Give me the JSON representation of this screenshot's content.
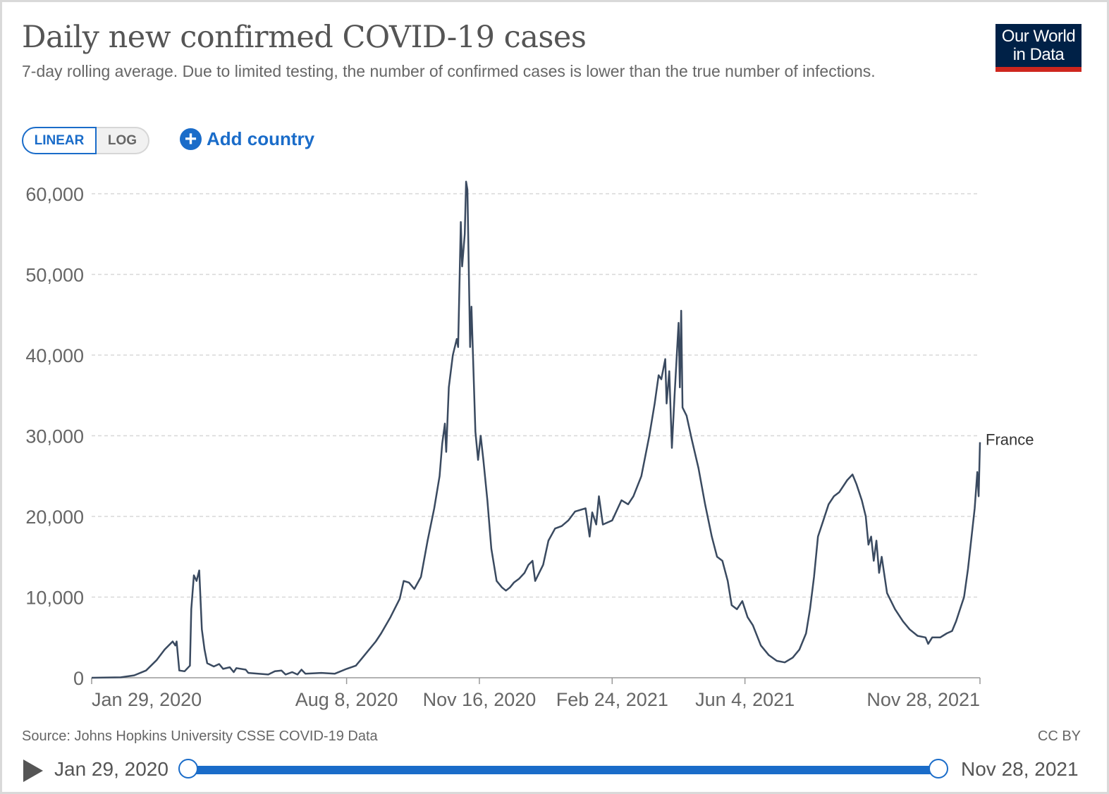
{
  "header": {
    "title": "Daily new confirmed COVID-19 cases",
    "subtitle": "7-day rolling average. Due to limited testing, the number of confirmed cases is lower than the true number of infections."
  },
  "logo": {
    "line1": "Our World",
    "line2": "in Data"
  },
  "controls": {
    "linear_label": "LINEAR",
    "log_label": "LOG",
    "add_country_label": "Add country",
    "active_scale": "linear"
  },
  "footer": {
    "source": "Source: Johns Hopkins University CSSE COVID-19 Data",
    "license": "CC BY"
  },
  "timeline": {
    "start_label": "Jan 29, 2020",
    "end_label": "Nov 28, 2021",
    "start_fraction": 0,
    "end_fraction": 1
  },
  "colors": {
    "line": "#3a4a60",
    "grid": "#d8d8d8",
    "accent": "#1a6cc9",
    "logo_bg": "#002147",
    "logo_bar": "#ce261e"
  },
  "chart_data": {
    "type": "line",
    "title": "Daily new confirmed COVID-19 cases",
    "xlabel": "",
    "ylabel": "",
    "ylim": [
      0,
      60000
    ],
    "xlim": [
      "2020-01-29",
      "2021-11-28"
    ],
    "y_ticks": [
      0,
      10000,
      20000,
      30000,
      40000,
      50000,
      60000
    ],
    "y_tick_labels": [
      "0",
      "10,000",
      "20,000",
      "30,000",
      "40,000",
      "50,000",
      "60,000"
    ],
    "x_ticks": [
      "2020-01-29",
      "2020-08-08",
      "2020-11-16",
      "2021-02-24",
      "2021-06-04",
      "2021-11-28"
    ],
    "x_tick_labels": [
      "Jan 29, 2020",
      "Aug 8, 2020",
      "Nov 16, 2020",
      "Feb 24, 2021",
      "Jun 4, 2021",
      "Nov 28, 2021"
    ],
    "grid": "horizontal dashed",
    "legend": "inline label at line end",
    "series": [
      {
        "name": "France",
        "points": [
          [
            "2020-01-29",
            0
          ],
          [
            "2020-02-20",
            50
          ],
          [
            "2020-03-01",
            300
          ],
          [
            "2020-03-10",
            900
          ],
          [
            "2020-03-18",
            2200
          ],
          [
            "2020-03-24",
            3500
          ],
          [
            "2020-03-30",
            4500
          ],
          [
            "2020-04-01",
            4000
          ],
          [
            "2020-04-02",
            4500
          ],
          [
            "2020-04-04",
            900
          ],
          [
            "2020-04-08",
            800
          ],
          [
            "2020-04-12",
            1500
          ],
          [
            "2020-04-13",
            8500
          ],
          [
            "2020-04-15",
            12700
          ],
          [
            "2020-04-17",
            12000
          ],
          [
            "2020-04-19",
            13300
          ],
          [
            "2020-04-21",
            6000
          ],
          [
            "2020-04-23",
            3500
          ],
          [
            "2020-04-25",
            1800
          ],
          [
            "2020-04-30",
            1400
          ],
          [
            "2020-05-04",
            1700
          ],
          [
            "2020-05-07",
            1100
          ],
          [
            "2020-05-12",
            1300
          ],
          [
            "2020-05-15",
            700
          ],
          [
            "2020-05-17",
            1200
          ],
          [
            "2020-05-24",
            1000
          ],
          [
            "2020-05-26",
            600
          ],
          [
            "2020-06-10",
            400
          ],
          [
            "2020-06-15",
            800
          ],
          [
            "2020-06-20",
            900
          ],
          [
            "2020-06-23",
            400
          ],
          [
            "2020-06-28",
            700
          ],
          [
            "2020-07-02",
            400
          ],
          [
            "2020-07-05",
            1000
          ],
          [
            "2020-07-08",
            500
          ],
          [
            "2020-07-20",
            600
          ],
          [
            "2020-07-30",
            500
          ],
          [
            "2020-08-08",
            1100
          ],
          [
            "2020-08-15",
            1500
          ],
          [
            "2020-08-20",
            2500
          ],
          [
            "2020-08-25",
            3500
          ],
          [
            "2020-08-30",
            4500
          ],
          [
            "2020-09-03",
            5500
          ],
          [
            "2020-09-10",
            7500
          ],
          [
            "2020-09-17",
            9800
          ],
          [
            "2020-09-20",
            12000
          ],
          [
            "2020-09-24",
            11800
          ],
          [
            "2020-09-28",
            11000
          ],
          [
            "2020-10-03",
            12500
          ],
          [
            "2020-10-08",
            17000
          ],
          [
            "2020-10-13",
            21000
          ],
          [
            "2020-10-17",
            25000
          ],
          [
            "2020-10-19",
            29000
          ],
          [
            "2020-10-21",
            31500
          ],
          [
            "2020-10-22",
            28000
          ],
          [
            "2020-10-24",
            36000
          ],
          [
            "2020-10-27",
            40000
          ],
          [
            "2020-10-30",
            42000
          ],
          [
            "2020-10-31",
            41000
          ],
          [
            "2020-11-02",
            56500
          ],
          [
            "2020-11-03",
            51000
          ],
          [
            "2020-11-05",
            55000
          ],
          [
            "2020-11-06",
            61500
          ],
          [
            "2020-11-07",
            60500
          ],
          [
            "2020-11-09",
            41000
          ],
          [
            "2020-11-10",
            46000
          ],
          [
            "2020-11-13",
            30500
          ],
          [
            "2020-11-15",
            27000
          ],
          [
            "2020-11-17",
            30000
          ],
          [
            "2020-11-19",
            27000
          ],
          [
            "2020-11-22",
            22000
          ],
          [
            "2020-11-25",
            16000
          ],
          [
            "2020-11-29",
            12000
          ],
          [
            "2020-12-03",
            11200
          ],
          [
            "2020-12-06",
            10800
          ],
          [
            "2020-12-09",
            11200
          ],
          [
            "2020-12-12",
            11800
          ],
          [
            "2020-12-16",
            12300
          ],
          [
            "2020-12-20",
            13000
          ],
          [
            "2020-12-23",
            14000
          ],
          [
            "2020-12-26",
            14500
          ],
          [
            "2020-12-28",
            12000
          ],
          [
            "2021-01-03",
            14000
          ],
          [
            "2021-01-07",
            17000
          ],
          [
            "2021-01-12",
            18500
          ],
          [
            "2021-01-17",
            18800
          ],
          [
            "2021-01-22",
            19500
          ],
          [
            "2021-01-27",
            20600
          ],
          [
            "2021-02-04",
            21000
          ],
          [
            "2021-02-07",
            17500
          ],
          [
            "2021-02-09",
            20500
          ],
          [
            "2021-02-12",
            19000
          ],
          [
            "2021-02-14",
            22500
          ],
          [
            "2021-02-17",
            19000
          ],
          [
            "2021-02-24",
            19500
          ],
          [
            "2021-03-03",
            22000
          ],
          [
            "2021-03-08",
            21500
          ],
          [
            "2021-03-12",
            22500
          ],
          [
            "2021-03-18",
            25000
          ],
          [
            "2021-03-24",
            30000
          ],
          [
            "2021-03-28",
            34000
          ],
          [
            "2021-03-31",
            37500
          ],
          [
            "2021-04-02",
            37000
          ],
          [
            "2021-04-05",
            39500
          ],
          [
            "2021-04-06",
            34000
          ],
          [
            "2021-04-08",
            38000
          ],
          [
            "2021-04-10",
            28500
          ],
          [
            "2021-04-12",
            35000
          ],
          [
            "2021-04-15",
            44000
          ],
          [
            "2021-04-16",
            36000
          ],
          [
            "2021-04-17",
            45500
          ],
          [
            "2021-04-18",
            33500
          ],
          [
            "2021-04-21",
            32500
          ],
          [
            "2021-04-25",
            29500
          ],
          [
            "2021-04-30",
            26000
          ],
          [
            "2021-05-05",
            21500
          ],
          [
            "2021-05-10",
            17500
          ],
          [
            "2021-05-14",
            15000
          ],
          [
            "2021-05-18",
            14500
          ],
          [
            "2021-05-22",
            12000
          ],
          [
            "2021-05-25",
            9000
          ],
          [
            "2021-05-29",
            8500
          ],
          [
            "2021-06-02",
            9500
          ],
          [
            "2021-06-06",
            7500
          ],
          [
            "2021-06-10",
            6500
          ],
          [
            "2021-06-16",
            4000
          ],
          [
            "2021-06-22",
            2800
          ],
          [
            "2021-06-28",
            2100
          ],
          [
            "2021-07-04",
            1900
          ],
          [
            "2021-07-10",
            2500
          ],
          [
            "2021-07-15",
            3500
          ],
          [
            "2021-07-20",
            5500
          ],
          [
            "2021-07-23",
            8500
          ],
          [
            "2021-07-26",
            12500
          ],
          [
            "2021-07-29",
            17500
          ],
          [
            "2021-08-02",
            19500
          ],
          [
            "2021-08-06",
            21500
          ],
          [
            "2021-08-10",
            22500
          ],
          [
            "2021-08-14",
            23000
          ],
          [
            "2021-08-20",
            24500
          ],
          [
            "2021-08-24",
            25200
          ],
          [
            "2021-08-27",
            24000
          ],
          [
            "2021-08-31",
            22000
          ],
          [
            "2021-09-03",
            20000
          ],
          [
            "2021-09-05",
            16500
          ],
          [
            "2021-09-07",
            17500
          ],
          [
            "2021-09-09",
            14500
          ],
          [
            "2021-09-11",
            17000
          ],
          [
            "2021-09-13",
            13000
          ],
          [
            "2021-09-15",
            15000
          ],
          [
            "2021-09-19",
            10500
          ],
          [
            "2021-09-25",
            8500
          ],
          [
            "2021-10-01",
            7000
          ],
          [
            "2021-10-06",
            6000
          ],
          [
            "2021-10-12",
            5200
          ],
          [
            "2021-10-18",
            5000
          ],
          [
            "2021-10-20",
            4200
          ],
          [
            "2021-10-23",
            5000
          ],
          [
            "2021-10-29",
            5000
          ],
          [
            "2021-11-03",
            5500
          ],
          [
            "2021-11-07",
            5800
          ],
          [
            "2021-11-10",
            7000
          ],
          [
            "2021-11-13",
            8500
          ],
          [
            "2021-11-16",
            10000
          ],
          [
            "2021-11-19",
            13500
          ],
          [
            "2021-11-22",
            18000
          ],
          [
            "2021-11-24",
            21000
          ],
          [
            "2021-11-26",
            25500
          ],
          [
            "2021-11-27",
            22500
          ],
          [
            "2021-11-28",
            29200
          ]
        ]
      }
    ]
  }
}
